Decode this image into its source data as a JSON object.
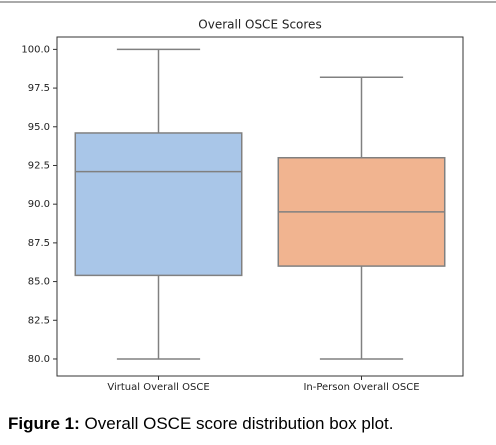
{
  "chart_data": {
    "type": "box",
    "title": "Overall OSCE Scores",
    "categories": [
      "Virtual Overall OSCE",
      "In-Person Overall OSCE"
    ],
    "boxes": [
      {
        "min": 80,
        "q1": 85.4,
        "median": 92.1,
        "q3": 94.6,
        "max": 100,
        "color": "#a9c6e8"
      },
      {
        "min": 80,
        "q1": 86,
        "median": 89.5,
        "q3": 93,
        "max": 98.2,
        "color": "#f1b490"
      }
    ],
    "ylim": [
      78.9,
      100.8
    ],
    "yticks": [
      {
        "value": 80,
        "label": "80.0"
      },
      82.5,
      {
        "value": 85,
        "label": "85.0"
      },
      87.5,
      {
        "value": 90,
        "label": "90.0"
      },
      92.5,
      {
        "value": 95,
        "label": "95.0"
      },
      97.5,
      {
        "value": 100,
        "label": "100.0"
      }
    ]
  },
  "caption": {
    "label": "Figure 1:",
    "text": "Overall OSCE score distribution box plot."
  }
}
